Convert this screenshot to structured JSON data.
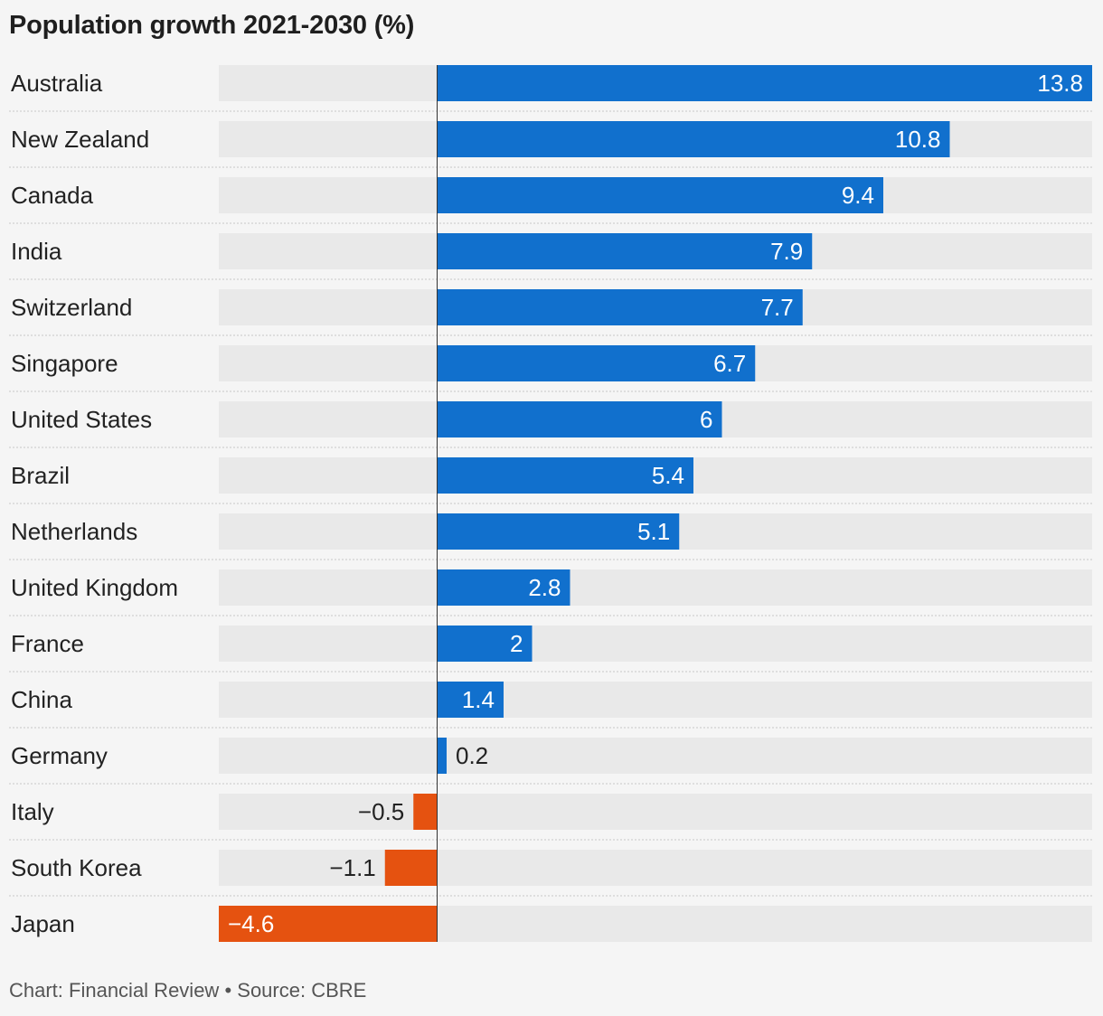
{
  "chart_data": {
    "type": "bar",
    "orientation": "horizontal",
    "title": "Population growth 2021-2030 (%)",
    "footer": {
      "credit": "Chart: Financial Review",
      "separator": "•",
      "source": "Source: CBRE"
    },
    "categories": [
      "Australia",
      "New Zealand",
      "Canada",
      "India",
      "Switzerland",
      "Singapore",
      "United States",
      "Brazil",
      "Netherlands",
      "United Kingdom",
      "France",
      "China",
      "Germany",
      "Italy",
      "South Korea",
      "Japan"
    ],
    "values": [
      13.8,
      10.8,
      9.4,
      7.9,
      7.7,
      6.7,
      6,
      5.4,
      5.1,
      2.8,
      2,
      1.4,
      0.2,
      -0.5,
      -1.1,
      -4.6
    ],
    "value_labels": [
      "13.8",
      "10.8",
      "9.4",
      "7.9",
      "7.7",
      "6.7",
      "6",
      "5.4",
      "5.1",
      "2.8",
      "2",
      "1.4",
      "0.2",
      "−0.5",
      "−1.1",
      "−4.6"
    ],
    "xlim": [
      -4.6,
      13.8
    ],
    "grid": false,
    "legend": "none",
    "colors": {
      "positive": "#1170cd",
      "negative": "#e55210",
      "track": "#e9e9e9",
      "separator": "#c8c8c8",
      "zero_line": "#333333",
      "background": "#f5f5f5"
    }
  }
}
